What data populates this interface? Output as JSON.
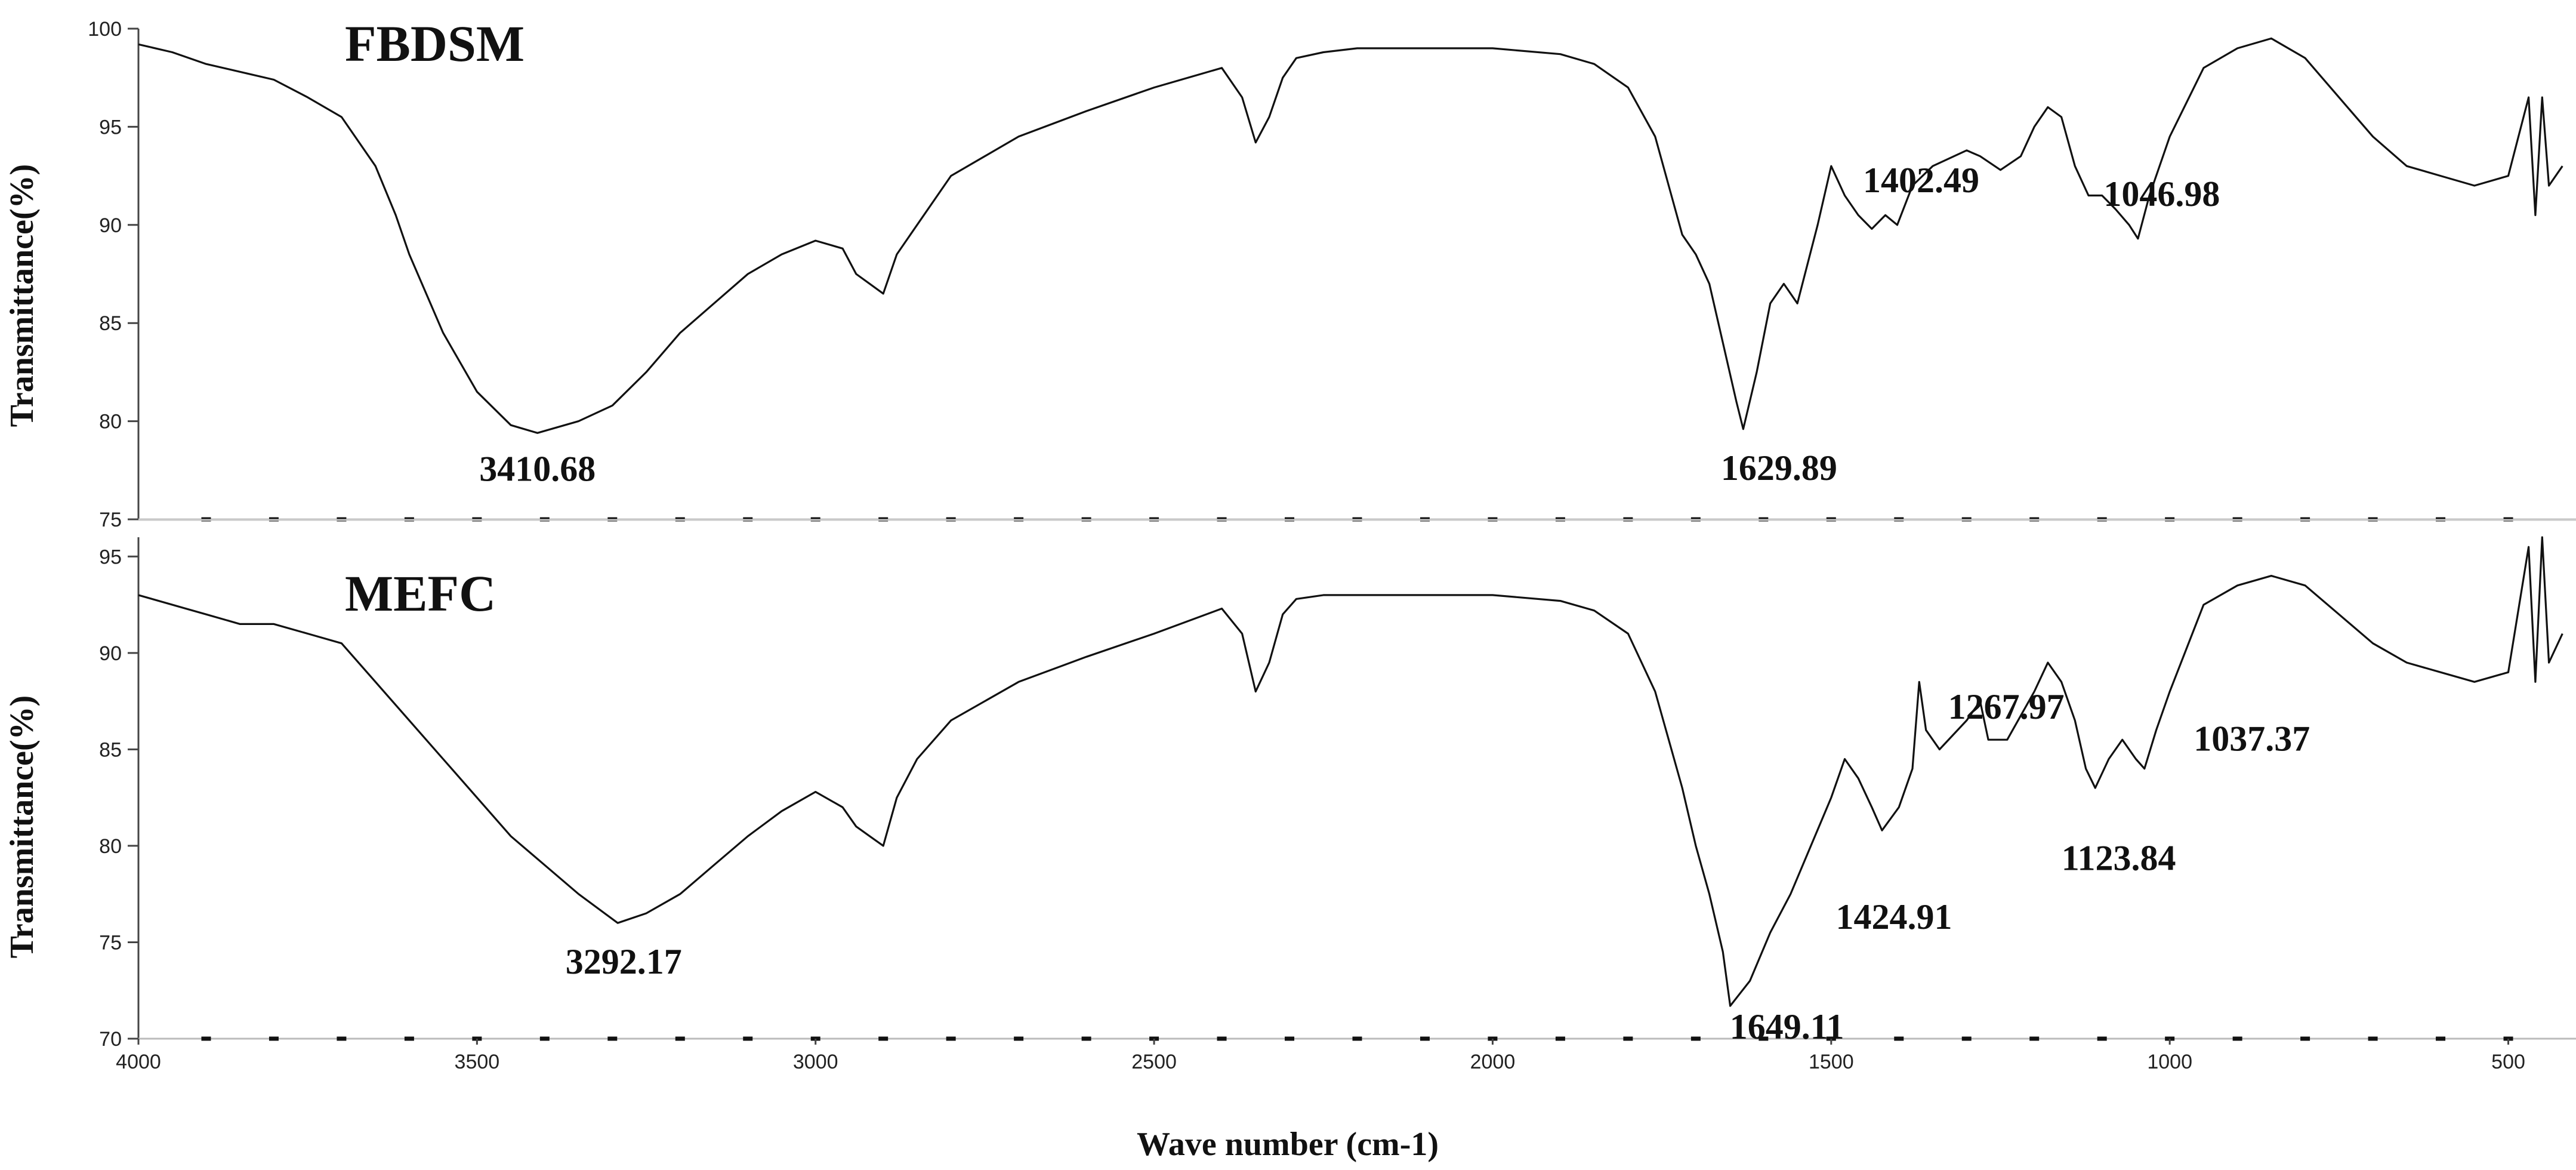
{
  "chart_data": [
    {
      "type": "line",
      "panel_label": "FBDSM",
      "ylabel": "Transmittance(%)",
      "xlabel": "",
      "xlim": [
        4000,
        400
      ],
      "ylim": [
        75,
        100
      ],
      "y_ticks": [
        "75",
        "80",
        "85",
        "90",
        "95",
        "100"
      ],
      "grid": false,
      "series": [
        {
          "x": [
            4000,
            3950,
            3900,
            3850,
            3800,
            3750,
            3700,
            3650,
            3620,
            3600,
            3550,
            3500,
            3450,
            3410.68,
            3350,
            3300,
            3250,
            3200,
            3150,
            3100,
            3050,
            3000,
            2960,
            2940,
            2920,
            2900,
            2880,
            2850,
            2800,
            2700,
            2600,
            2500,
            2400,
            2370,
            2350,
            2330,
            2310,
            2290,
            2250,
            2200,
            2100,
            2000,
            1900,
            1850,
            1800,
            1760,
            1740,
            1720,
            1700,
            1680,
            1660,
            1640,
            1629.89,
            1610,
            1590,
            1570,
            1550,
            1520,
            1500,
            1480,
            1460,
            1440,
            1420,
            1402.49,
            1380,
            1350,
            1300,
            1280,
            1250,
            1220,
            1200,
            1180,
            1160,
            1140,
            1120,
            1100,
            1080,
            1060,
            1046.98,
            1030,
            1000,
            950,
            900,
            850,
            800,
            750,
            700,
            650,
            600,
            550,
            500,
            470,
            460,
            450,
            440,
            420
          ],
          "y": [
            99.2,
            98.8,
            98.2,
            97.8,
            97.4,
            96.5,
            95.5,
            93.0,
            90.5,
            88.5,
            84.5,
            81.5,
            79.8,
            79.4,
            80.0,
            80.8,
            82.5,
            84.5,
            86.0,
            87.5,
            88.5,
            89.2,
            88.8,
            87.5,
            87.0,
            86.5,
            88.5,
            90.0,
            92.5,
            94.5,
            95.8,
            97.0,
            98.0,
            96.5,
            94.2,
            95.5,
            97.5,
            98.5,
            98.8,
            99.0,
            99.0,
            99.0,
            98.7,
            98.2,
            97.0,
            94.5,
            92.0,
            89.5,
            88.5,
            87.0,
            84.0,
            81.0,
            79.6,
            82.5,
            86.0,
            87.0,
            86.0,
            90.0,
            93.0,
            91.5,
            90.5,
            89.8,
            90.5,
            90.0,
            92.0,
            93.0,
            93.8,
            93.5,
            92.8,
            93.5,
            95.0,
            96.0,
            95.5,
            93.0,
            91.5,
            91.5,
            90.8,
            90.0,
            89.3,
            91.5,
            94.5,
            98.0,
            99.0,
            99.5,
            98.5,
            96.5,
            94.5,
            93.0,
            92.5,
            92.0,
            92.5,
            96.5,
            90.5,
            96.5,
            92.0,
            93.0
          ]
        }
      ],
      "annotations": [
        {
          "text": "3410.68",
          "x": 3410.68,
          "y": 79.4
        },
        {
          "text": "1629.89",
          "x": 1629.89,
          "y": 79.6
        },
        {
          "text": "1402.49",
          "x": 1402.49,
          "y": 90.0
        },
        {
          "text": "1046.98",
          "x": 1046.98,
          "y": 89.3
        }
      ]
    },
    {
      "type": "line",
      "panel_label": "MEFC",
      "ylabel": "Transmittance(%)",
      "xlabel": "Wave number (cm-1)",
      "xlim": [
        4000,
        400
      ],
      "ylim": [
        70,
        96
      ],
      "y_ticks": [
        "70",
        "75",
        "80",
        "85",
        "90",
        "95"
      ],
      "x_ticks": [
        "4000",
        "3500",
        "3000",
        "2500",
        "2000",
        "1500",
        "1000",
        "500"
      ],
      "grid": false,
      "series": [
        {
          "x": [
            4000,
            3950,
            3900,
            3850,
            3800,
            3750,
            3700,
            3650,
            3600,
            3550,
            3500,
            3450,
            3400,
            3350,
            3292.17,
            3250,
            3200,
            3150,
            3100,
            3050,
            3000,
            2960,
            2940,
            2920,
            2900,
            2880,
            2850,
            2800,
            2700,
            2600,
            2500,
            2400,
            2370,
            2350,
            2330,
            2310,
            2290,
            2250,
            2200,
            2100,
            2000,
            1900,
            1850,
            1800,
            1760,
            1740,
            1720,
            1700,
            1680,
            1660,
            1649.11,
            1620,
            1590,
            1560,
            1530,
            1500,
            1480,
            1460,
            1440,
            1424.91,
            1400,
            1380,
            1370,
            1360,
            1340,
            1300,
            1280,
            1267.97,
            1240,
            1200,
            1180,
            1160,
            1140,
            1123.84,
            1110,
            1090,
            1070,
            1050,
            1037.37,
            1020,
            1000,
            950,
            900,
            850,
            800,
            750,
            700,
            650,
            600,
            550,
            500,
            470,
            460,
            450,
            440,
            420
          ],
          "y": [
            93.0,
            92.5,
            92.0,
            91.5,
            91.5,
            91.0,
            90.5,
            88.5,
            86.5,
            84.5,
            82.5,
            80.5,
            79.0,
            77.5,
            76.0,
            76.5,
            77.5,
            79.0,
            80.5,
            81.8,
            82.8,
            82.0,
            81.0,
            80.5,
            80.0,
            82.5,
            84.5,
            86.5,
            88.5,
            89.8,
            91.0,
            92.3,
            91.0,
            88.0,
            89.5,
            92.0,
            92.8,
            93.0,
            93.0,
            93.0,
            93.0,
            92.7,
            92.2,
            91.0,
            88.0,
            85.5,
            83.0,
            80.0,
            77.5,
            74.5,
            71.7,
            73.0,
            75.5,
            77.5,
            80.0,
            82.5,
            84.5,
            83.5,
            82.0,
            80.8,
            82.0,
            84.0,
            88.5,
            86.0,
            85.0,
            86.5,
            87.5,
            85.5,
            85.5,
            88.0,
            89.5,
            88.5,
            86.5,
            84.0,
            83.0,
            84.5,
            85.5,
            84.5,
            84.0,
            86.0,
            88.0,
            92.5,
            93.5,
            94.0,
            93.5,
            92.0,
            90.5,
            89.5,
            89.0,
            88.5,
            89.0,
            95.5,
            88.5,
            96.0,
            89.5,
            91.0
          ]
        }
      ],
      "annotations": [
        {
          "text": "3292.17",
          "x": 3292.17,
          "y": 76.0
        },
        {
          "text": "1649.11",
          "x": 1649.11,
          "y": 71.7
        },
        {
          "text": "1424.91",
          "x": 1424.91,
          "y": 80.8
        },
        {
          "text": "1267.97",
          "x": 1267.97,
          "y": 85.5
        },
        {
          "text": "1123.84",
          "x": 1123.84,
          "y": 84.0
        },
        {
          "text": "1037.37",
          "x": 1037.37,
          "y": 84.0
        }
      ]
    }
  ]
}
